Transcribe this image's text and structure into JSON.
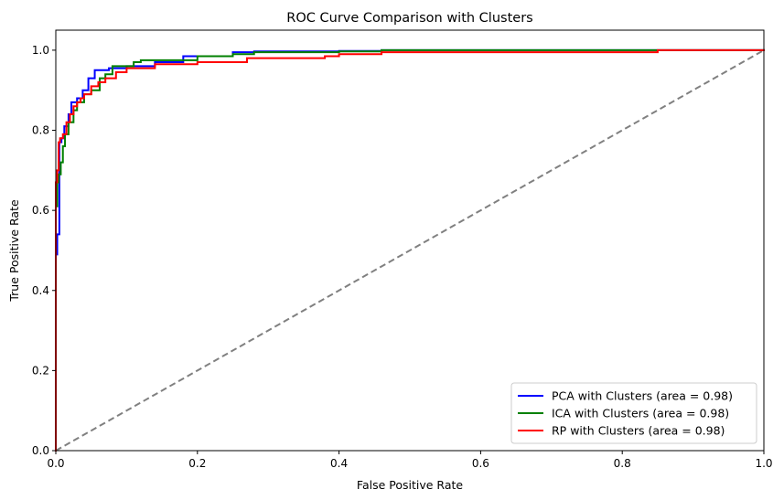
{
  "chart_data": {
    "type": "line",
    "title": "ROC Curve Comparison with Clusters",
    "xlabel": "False Positive Rate",
    "ylabel": "True Positive Rate",
    "xlim": [
      0.0,
      1.0
    ],
    "ylim": [
      0.0,
      1.05
    ],
    "x_ticks": [
      "0.0",
      "0.2",
      "0.4",
      "0.6",
      "0.8",
      "1.0"
    ],
    "y_ticks": [
      "0.0",
      "0.2",
      "0.4",
      "0.6",
      "0.8",
      "1.0"
    ],
    "grid": false,
    "legend_position": "bottom-right",
    "series": [
      {
        "name": "PCA with Clusters (area = 0.98)",
        "color": "#0000ff",
        "x": [
          0.0,
          0.0,
          0.002,
          0.002,
          0.005,
          0.005,
          0.008,
          0.008,
          0.012,
          0.012,
          0.018,
          0.018,
          0.022,
          0.022,
          0.03,
          0.03,
          0.038,
          0.038,
          0.046,
          0.046,
          0.055,
          0.055,
          0.075,
          0.075,
          0.1,
          0.1,
          0.14,
          0.14,
          0.18,
          0.18,
          0.25,
          0.25,
          0.28,
          0.28,
          0.4,
          0.4,
          0.46,
          0.46,
          1.0
        ],
        "y": [
          0.0,
          0.49,
          0.49,
          0.54,
          0.54,
          0.77,
          0.77,
          0.78,
          0.78,
          0.81,
          0.81,
          0.84,
          0.84,
          0.87,
          0.87,
          0.88,
          0.88,
          0.9,
          0.9,
          0.93,
          0.93,
          0.95,
          0.95,
          0.955,
          0.955,
          0.96,
          0.96,
          0.97,
          0.97,
          0.985,
          0.985,
          0.995,
          0.995,
          0.997,
          0.997,
          0.998,
          0.998,
          1.0,
          1.0
        ]
      },
      {
        "name": "ICA with Clusters (area = 0.98)",
        "color": "#008000",
        "x": [
          0.0,
          0.0,
          0.002,
          0.002,
          0.004,
          0.004,
          0.007,
          0.007,
          0.01,
          0.01,
          0.013,
          0.013,
          0.018,
          0.018,
          0.025,
          0.025,
          0.03,
          0.03,
          0.04,
          0.04,
          0.05,
          0.05,
          0.062,
          0.062,
          0.07,
          0.07,
          0.08,
          0.08,
          0.11,
          0.11,
          0.12,
          0.12,
          0.2,
          0.2,
          0.25,
          0.25,
          0.28,
          0.28,
          0.4,
          0.4,
          0.46,
          0.46,
          1.0
        ],
        "y": [
          0.0,
          0.61,
          0.61,
          0.67,
          0.67,
          0.69,
          0.69,
          0.72,
          0.72,
          0.76,
          0.76,
          0.79,
          0.79,
          0.82,
          0.82,
          0.85,
          0.85,
          0.87,
          0.87,
          0.89,
          0.89,
          0.9,
          0.9,
          0.93,
          0.93,
          0.94,
          0.94,
          0.96,
          0.96,
          0.97,
          0.97,
          0.975,
          0.975,
          0.985,
          0.985,
          0.99,
          0.99,
          0.995,
          0.995,
          0.997,
          0.997,
          1.0,
          1.0
        ]
      },
      {
        "name": "RP with Clusters (area = 0.98)",
        "color": "#ff0000",
        "x": [
          0.0,
          0.0,
          0.002,
          0.002,
          0.004,
          0.004,
          0.006,
          0.006,
          0.01,
          0.01,
          0.015,
          0.015,
          0.02,
          0.02,
          0.025,
          0.025,
          0.03,
          0.03,
          0.035,
          0.035,
          0.04,
          0.04,
          0.05,
          0.05,
          0.06,
          0.06,
          0.07,
          0.07,
          0.085,
          0.085,
          0.1,
          0.1,
          0.14,
          0.14,
          0.2,
          0.2,
          0.27,
          0.27,
          0.38,
          0.38,
          0.4,
          0.4,
          0.46,
          0.46,
          0.85,
          0.85,
          1.0
        ],
        "y": [
          0.0,
          0.67,
          0.67,
          0.7,
          0.7,
          0.77,
          0.77,
          0.78,
          0.78,
          0.79,
          0.79,
          0.82,
          0.82,
          0.84,
          0.84,
          0.86,
          0.86,
          0.87,
          0.87,
          0.88,
          0.88,
          0.89,
          0.89,
          0.91,
          0.91,
          0.92,
          0.92,
          0.93,
          0.93,
          0.945,
          0.945,
          0.955,
          0.955,
          0.965,
          0.965,
          0.97,
          0.97,
          0.98,
          0.98,
          0.985,
          0.985,
          0.99,
          0.99,
          0.995,
          0.995,
          1.0,
          1.0
        ]
      }
    ],
    "reference_line": {
      "color": "#808080",
      "x": [
        0.0,
        1.0
      ],
      "y": [
        0.0,
        1.0
      ]
    }
  }
}
